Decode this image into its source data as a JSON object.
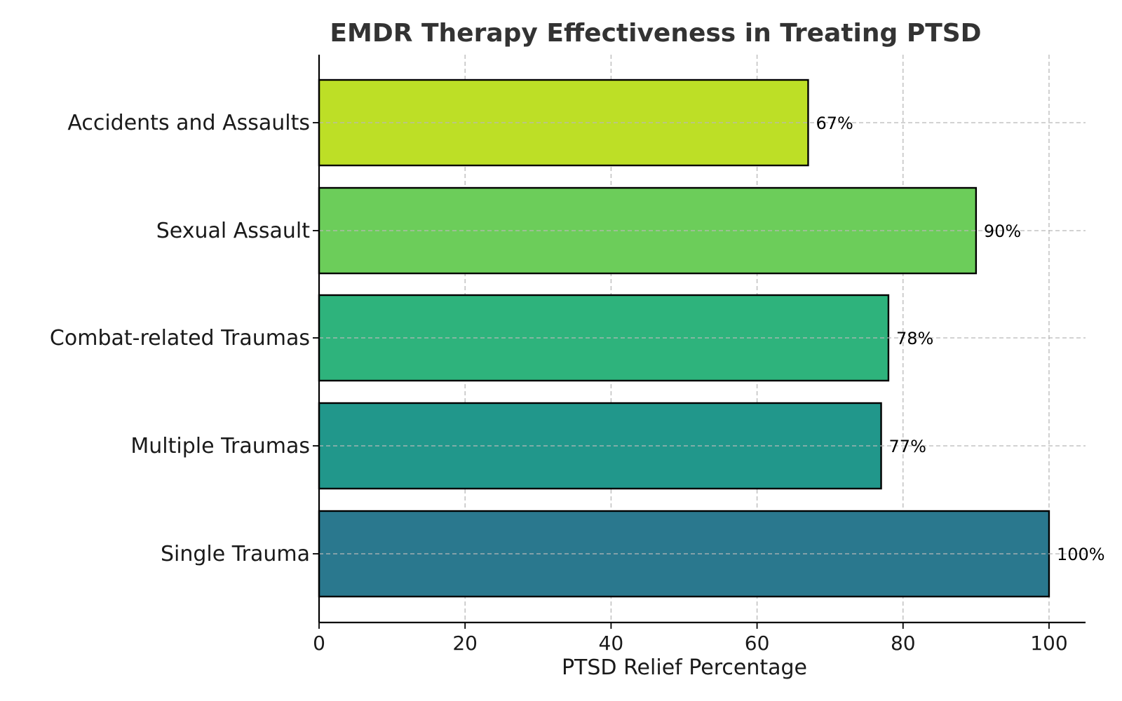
{
  "chart_data": {
    "type": "bar",
    "orientation": "horizontal",
    "title": "EMDR Therapy Effectiveness in Treating PTSD",
    "xlabel": "PTSD Relief Percentage",
    "ylabel": "",
    "categories": [
      "Single Trauma",
      "Multiple Traumas",
      "Combat-related Traumas",
      "Sexual Assault",
      "Accidents and Assaults"
    ],
    "values": [
      100,
      77,
      78,
      90,
      67
    ],
    "value_labels": [
      "100%",
      "77%",
      "78%",
      "90%",
      "67%"
    ],
    "colors": [
      "#2A788E",
      "#21978B",
      "#2EB37C",
      "#6CCD5A",
      "#BDDF26"
    ],
    "xlim": [
      0,
      105
    ],
    "xticks": [
      0,
      20,
      40,
      60,
      80,
      100
    ],
    "xtick_labels": [
      "0",
      "20",
      "40",
      "60",
      "80",
      "100"
    ],
    "grid": true
  }
}
